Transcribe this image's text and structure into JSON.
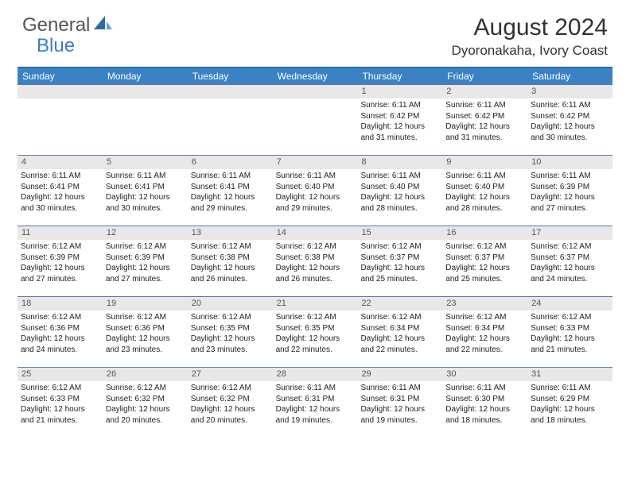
{
  "logo": {
    "part1": "General",
    "part2": "Blue"
  },
  "title": "August 2024",
  "location": "Dyoronakaha, Ivory Coast",
  "colors": {
    "headerBlue": "#3b82c4",
    "borderBlue": "#2e6da4",
    "rowBorder": "#5a7a9a",
    "dayBarBg": "#e8e8e8",
    "textDark": "#333333",
    "logoGray": "#555555",
    "logoBlue": "#3b7fc4"
  },
  "weekdays": [
    "Sunday",
    "Monday",
    "Tuesday",
    "Wednesday",
    "Thursday",
    "Friday",
    "Saturday"
  ],
  "weeks": [
    [
      {
        "n": "",
        "sr": "",
        "ss": "",
        "dl": ""
      },
      {
        "n": "",
        "sr": "",
        "ss": "",
        "dl": ""
      },
      {
        "n": "",
        "sr": "",
        "ss": "",
        "dl": ""
      },
      {
        "n": "",
        "sr": "",
        "ss": "",
        "dl": ""
      },
      {
        "n": "1",
        "sr": "Sunrise: 6:11 AM",
        "ss": "Sunset: 6:42 PM",
        "dl": "Daylight: 12 hours and 31 minutes."
      },
      {
        "n": "2",
        "sr": "Sunrise: 6:11 AM",
        "ss": "Sunset: 6:42 PM",
        "dl": "Daylight: 12 hours and 31 minutes."
      },
      {
        "n": "3",
        "sr": "Sunrise: 6:11 AM",
        "ss": "Sunset: 6:42 PM",
        "dl": "Daylight: 12 hours and 30 minutes."
      }
    ],
    [
      {
        "n": "4",
        "sr": "Sunrise: 6:11 AM",
        "ss": "Sunset: 6:41 PM",
        "dl": "Daylight: 12 hours and 30 minutes."
      },
      {
        "n": "5",
        "sr": "Sunrise: 6:11 AM",
        "ss": "Sunset: 6:41 PM",
        "dl": "Daylight: 12 hours and 30 minutes."
      },
      {
        "n": "6",
        "sr": "Sunrise: 6:11 AM",
        "ss": "Sunset: 6:41 PM",
        "dl": "Daylight: 12 hours and 29 minutes."
      },
      {
        "n": "7",
        "sr": "Sunrise: 6:11 AM",
        "ss": "Sunset: 6:40 PM",
        "dl": "Daylight: 12 hours and 29 minutes."
      },
      {
        "n": "8",
        "sr": "Sunrise: 6:11 AM",
        "ss": "Sunset: 6:40 PM",
        "dl": "Daylight: 12 hours and 28 minutes."
      },
      {
        "n": "9",
        "sr": "Sunrise: 6:11 AM",
        "ss": "Sunset: 6:40 PM",
        "dl": "Daylight: 12 hours and 28 minutes."
      },
      {
        "n": "10",
        "sr": "Sunrise: 6:11 AM",
        "ss": "Sunset: 6:39 PM",
        "dl": "Daylight: 12 hours and 27 minutes."
      }
    ],
    [
      {
        "n": "11",
        "sr": "Sunrise: 6:12 AM",
        "ss": "Sunset: 6:39 PM",
        "dl": "Daylight: 12 hours and 27 minutes."
      },
      {
        "n": "12",
        "sr": "Sunrise: 6:12 AM",
        "ss": "Sunset: 6:39 PM",
        "dl": "Daylight: 12 hours and 27 minutes."
      },
      {
        "n": "13",
        "sr": "Sunrise: 6:12 AM",
        "ss": "Sunset: 6:38 PM",
        "dl": "Daylight: 12 hours and 26 minutes."
      },
      {
        "n": "14",
        "sr": "Sunrise: 6:12 AM",
        "ss": "Sunset: 6:38 PM",
        "dl": "Daylight: 12 hours and 26 minutes."
      },
      {
        "n": "15",
        "sr": "Sunrise: 6:12 AM",
        "ss": "Sunset: 6:37 PM",
        "dl": "Daylight: 12 hours and 25 minutes."
      },
      {
        "n": "16",
        "sr": "Sunrise: 6:12 AM",
        "ss": "Sunset: 6:37 PM",
        "dl": "Daylight: 12 hours and 25 minutes."
      },
      {
        "n": "17",
        "sr": "Sunrise: 6:12 AM",
        "ss": "Sunset: 6:37 PM",
        "dl": "Daylight: 12 hours and 24 minutes."
      }
    ],
    [
      {
        "n": "18",
        "sr": "Sunrise: 6:12 AM",
        "ss": "Sunset: 6:36 PM",
        "dl": "Daylight: 12 hours and 24 minutes."
      },
      {
        "n": "19",
        "sr": "Sunrise: 6:12 AM",
        "ss": "Sunset: 6:36 PM",
        "dl": "Daylight: 12 hours and 23 minutes."
      },
      {
        "n": "20",
        "sr": "Sunrise: 6:12 AM",
        "ss": "Sunset: 6:35 PM",
        "dl": "Daylight: 12 hours and 23 minutes."
      },
      {
        "n": "21",
        "sr": "Sunrise: 6:12 AM",
        "ss": "Sunset: 6:35 PM",
        "dl": "Daylight: 12 hours and 22 minutes."
      },
      {
        "n": "22",
        "sr": "Sunrise: 6:12 AM",
        "ss": "Sunset: 6:34 PM",
        "dl": "Daylight: 12 hours and 22 minutes."
      },
      {
        "n": "23",
        "sr": "Sunrise: 6:12 AM",
        "ss": "Sunset: 6:34 PM",
        "dl": "Daylight: 12 hours and 22 minutes."
      },
      {
        "n": "24",
        "sr": "Sunrise: 6:12 AM",
        "ss": "Sunset: 6:33 PM",
        "dl": "Daylight: 12 hours and 21 minutes."
      }
    ],
    [
      {
        "n": "25",
        "sr": "Sunrise: 6:12 AM",
        "ss": "Sunset: 6:33 PM",
        "dl": "Daylight: 12 hours and 21 minutes."
      },
      {
        "n": "26",
        "sr": "Sunrise: 6:12 AM",
        "ss": "Sunset: 6:32 PM",
        "dl": "Daylight: 12 hours and 20 minutes."
      },
      {
        "n": "27",
        "sr": "Sunrise: 6:12 AM",
        "ss": "Sunset: 6:32 PM",
        "dl": "Daylight: 12 hours and 20 minutes."
      },
      {
        "n": "28",
        "sr": "Sunrise: 6:11 AM",
        "ss": "Sunset: 6:31 PM",
        "dl": "Daylight: 12 hours and 19 minutes."
      },
      {
        "n": "29",
        "sr": "Sunrise: 6:11 AM",
        "ss": "Sunset: 6:31 PM",
        "dl": "Daylight: 12 hours and 19 minutes."
      },
      {
        "n": "30",
        "sr": "Sunrise: 6:11 AM",
        "ss": "Sunset: 6:30 PM",
        "dl": "Daylight: 12 hours and 18 minutes."
      },
      {
        "n": "31",
        "sr": "Sunrise: 6:11 AM",
        "ss": "Sunset: 6:29 PM",
        "dl": "Daylight: 12 hours and 18 minutes."
      }
    ]
  ]
}
